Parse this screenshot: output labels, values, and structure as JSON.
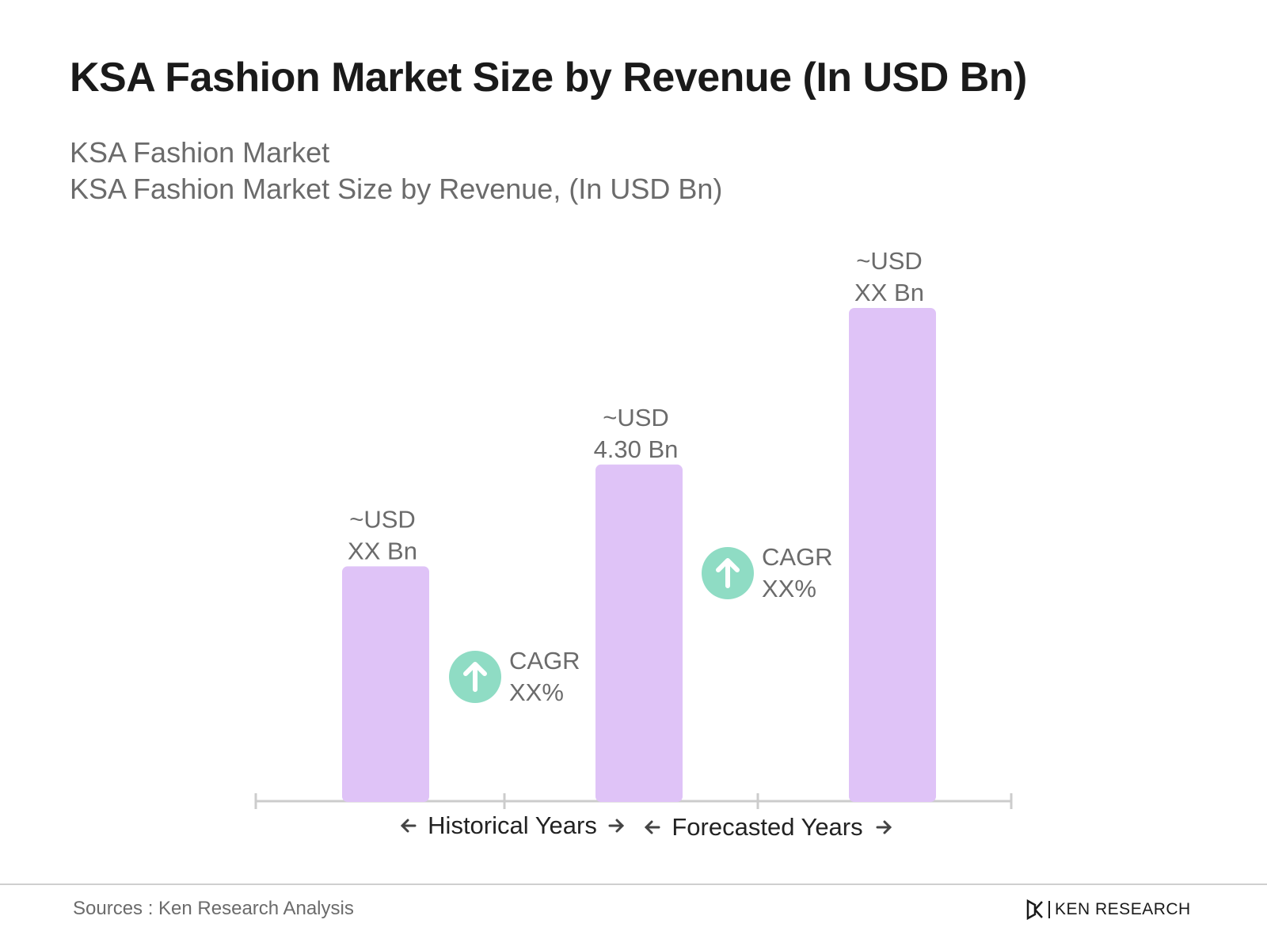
{
  "title": "KSA Fashion Market Size by Revenue (In USD Bn)",
  "subtitle_line1": "KSA Fashion Market",
  "subtitle_line2": "KSA Fashion Market Size by Revenue, (In USD Bn)",
  "source": "Sources : Ken Research Analysis",
  "brand": "KEN RESEARCH",
  "colors": {
    "bar": "#dfc3f7",
    "badge": "#8fdcc4",
    "axis": "#cccccc",
    "label": "#6b6b6b"
  },
  "chart_data": {
    "type": "bar",
    "values_approx": [
      3.0,
      4.3,
      6.3
    ],
    "bar_labels": [
      {
        "line1": "~USD",
        "line2": "XX Bn"
      },
      {
        "line1": "~USD",
        "line2": "4.30 Bn"
      },
      {
        "line1": "~USD",
        "line2": "XX Bn"
      }
    ],
    "cagr": [
      {
        "label": "CAGR",
        "value": "XX%"
      },
      {
        "label": "CAGR",
        "value": "XX%"
      }
    ],
    "periods": [
      "Historical Years",
      "Forecasted Years"
    ],
    "ylim": [
      0,
      6.3
    ]
  }
}
